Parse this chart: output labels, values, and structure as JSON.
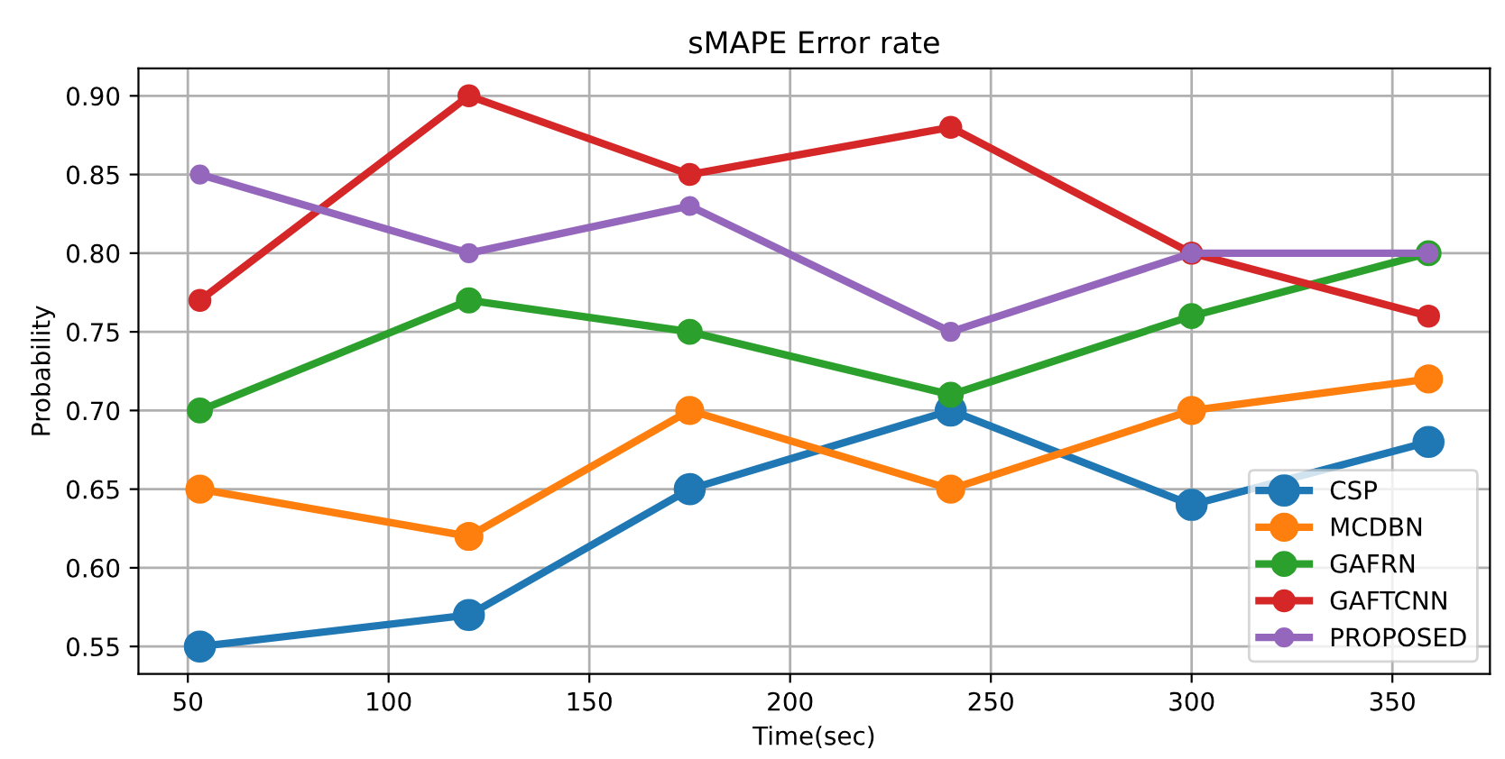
{
  "chart_data": {
    "type": "line",
    "title": "sMAPE Error rate",
    "xlabel": "Time(sec)",
    "ylabel": "Probability",
    "x": [
      53,
      120,
      175,
      240,
      300,
      359
    ],
    "series": [
      {
        "name": "CSP",
        "color": "#1f77b4",
        "values": [
          0.55,
          0.57,
          0.65,
          0.7,
          0.64,
          0.68
        ]
      },
      {
        "name": "MCDBN",
        "color": "#ff7f0e",
        "values": [
          0.65,
          0.62,
          0.7,
          0.65,
          0.7,
          0.72
        ]
      },
      {
        "name": "GAFRN",
        "color": "#2ca02c",
        "values": [
          0.7,
          0.77,
          0.75,
          0.71,
          0.76,
          0.8
        ]
      },
      {
        "name": "GAFTCNN",
        "color": "#d62728",
        "values": [
          0.77,
          0.9,
          0.85,
          0.88,
          0.8,
          0.76
        ]
      },
      {
        "name": "PROPOSED",
        "color": "#9467bd",
        "values": [
          0.85,
          0.8,
          0.83,
          0.75,
          0.8,
          0.8
        ]
      }
    ],
    "xlim": [
      37.7,
      374.3
    ],
    "ylim": [
      0.5325,
      0.9175
    ],
    "xticks": [
      50,
      100,
      150,
      200,
      250,
      300,
      350
    ],
    "yticks": [
      {
        "value": 0.55,
        "label": "0.55"
      },
      {
        "value": 0.6,
        "label": "0.60"
      },
      {
        "value": 0.65,
        "label": "0.65"
      },
      {
        "value": 0.7,
        "label": "0.70"
      },
      {
        "value": 0.75,
        "label": "0.75"
      },
      {
        "value": 0.8,
        "label": "0.80"
      },
      {
        "value": 0.85,
        "label": "0.85"
      },
      {
        "value": 0.9,
        "label": "0.90"
      }
    ],
    "grid": true,
    "legend": "lower right",
    "marker": "circle",
    "line_style": "solid"
  }
}
